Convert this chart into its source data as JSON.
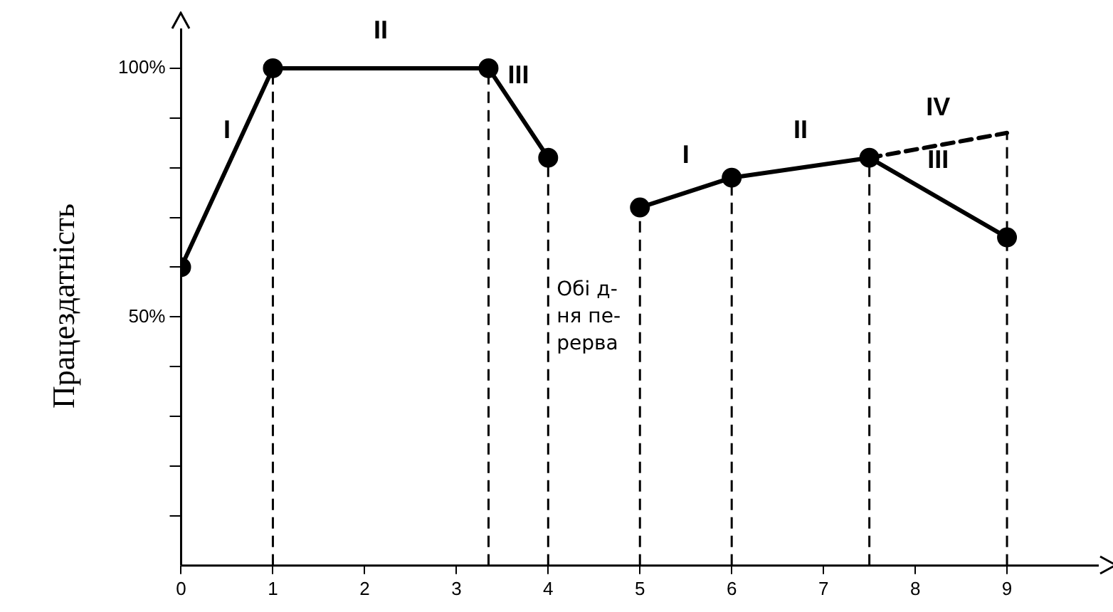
{
  "chart_data": {
    "type": "line",
    "ylabel": "Працездатність",
    "marker": "circle",
    "legend": false,
    "grid": false,
    "xlim": [
      0,
      10
    ],
    "xticks": [
      0,
      1,
      2,
      3,
      4,
      5,
      6,
      7,
      8,
      9
    ],
    "ylim": [
      0,
      108
    ],
    "yticks": [
      {
        "value": 10,
        "label": null
      },
      {
        "value": 20,
        "label": null
      },
      {
        "value": 30,
        "label": null
      },
      {
        "value": 40,
        "label": null
      },
      {
        "value": 50,
        "label": "50%"
      },
      {
        "value": 60,
        "label": null
      },
      {
        "value": 70,
        "label": null
      },
      {
        "value": 80,
        "label": null
      },
      {
        "value": 90,
        "label": null
      },
      {
        "value": 100,
        "label": "100%"
      }
    ],
    "series": [
      {
        "color": "#000000",
        "x": [
          0,
          1,
          3.35,
          4
        ],
        "values": [
          60,
          100,
          100,
          82
        ]
      },
      {
        "color": "#000000",
        "x": [
          5,
          6,
          7.5,
          9
        ],
        "values": [
          72,
          78,
          82,
          66
        ]
      },
      {
        "color": "#000000",
        "x": [
          7.5,
          9
        ],
        "values": [
          82,
          87
        ],
        "line_style": "dashed",
        "marker": "none"
      }
    ],
    "ref_lines": [
      {
        "axis": "x",
        "value": 1,
        "line_style": "dashed"
      },
      {
        "axis": "x",
        "value": 3.35,
        "line_style": "dashed"
      },
      {
        "axis": "x",
        "value": 4,
        "line_style": "dashed"
      },
      {
        "axis": "x",
        "value": 5,
        "line_style": "dashed"
      },
      {
        "axis": "x",
        "value": 6,
        "line_style": "dashed"
      },
      {
        "axis": "x",
        "value": 7.5,
        "line_style": "dashed"
      },
      {
        "axis": "x",
        "value": 9,
        "line_style": "dashed"
      }
    ],
    "annotations": [
      "I",
      "II",
      "III",
      "I",
      "II",
      "III",
      "IV",
      "Обі д-\nня пе-\nрерва"
    ]
  }
}
